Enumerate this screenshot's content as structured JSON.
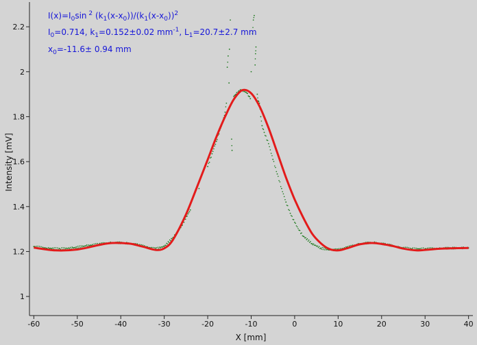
{
  "chart_data": {
    "type": "scatter",
    "xlabel": "X [mm]",
    "ylabel": "Intensity [mV]",
    "xlim": [
      -61,
      41
    ],
    "ylim": [
      0.915,
      2.31
    ],
    "x_ticks": [
      -60,
      -50,
      -40,
      -30,
      -20,
      -10,
      0,
      10,
      20,
      30,
      40
    ],
    "y_ticks": [
      1,
      1.2,
      1.4,
      1.6,
      1.8,
      2,
      2.2
    ],
    "grid": false,
    "colors": {
      "data": "#1f7a1f",
      "fit": "#e31b1b",
      "annotation": "#1515d8",
      "background": "#d4d4d4"
    },
    "annotations": {
      "line1": {
        "p1": "I(x)=I",
        "p2": "0",
        "p3": "sin",
        "p4": " 2",
        "p5": " (k",
        "p6": "1",
        "p7": "(x-x",
        "p8": "0",
        "p9": "))/(k",
        "p10": "1",
        "p11": "(x-x",
        "p12": "0",
        "p13": "))",
        "p14": "2"
      },
      "line2": {
        "p1": "I",
        "p2": "0",
        "p3": "=0.714,  k",
        "p4": "1",
        "p5": "=0.152±0.02 mm",
        "p6": "-1",
        "p7": ",   L",
        "p8": "1",
        "p9": "=20.7±2.7 mm"
      },
      "line3": {
        "p1": "x",
        "p2": "0",
        "p3": "=-11.6±  0.94 mm"
      }
    },
    "series": [
      {
        "kind": "fit",
        "x": [
          -60,
          -55,
          -50,
          -45,
          -42,
          -38,
          -35,
          -32,
          -30,
          -28,
          -25,
          -22,
          -20,
          -18,
          -16,
          -14,
          -12,
          -10,
          -8,
          -6,
          -4,
          -2,
          0,
          2,
          4,
          6,
          8,
          10,
          12,
          15,
          18,
          22,
          25,
          28,
          30,
          33,
          36,
          40
        ],
        "y": [
          1.217,
          1.205,
          1.209,
          1.229,
          1.238,
          1.235,
          1.222,
          1.207,
          1.214,
          1.252,
          1.365,
          1.51,
          1.609,
          1.71,
          1.8,
          1.877,
          1.918,
          1.904,
          1.843,
          1.75,
          1.64,
          1.53,
          1.432,
          1.35,
          1.28,
          1.237,
          1.211,
          1.205,
          1.214,
          1.232,
          1.238,
          1.227,
          1.213,
          1.205,
          1.207,
          1.212,
          1.214,
          1.216
        ]
      },
      {
        "kind": "data",
        "x": [
          -60,
          -57,
          -54,
          -51,
          -48,
          -45,
          -42,
          -39,
          -36,
          -34,
          -32,
          -30,
          -28,
          -26,
          -24,
          -22,
          -20,
          -19,
          -18,
          -17,
          -16.5,
          -16,
          -15.7,
          -15.5,
          -15.3,
          -15.1,
          -15,
          -14.8,
          -14.6,
          -14.5,
          -14.4,
          -14,
          -13.5,
          -13,
          -12.5,
          -12,
          -11.5,
          -11,
          -10.5,
          -10.2,
          -10,
          -9.7,
          -9.5,
          -9.3,
          -9.1,
          -9,
          -8.9,
          -8.6,
          -8.4,
          -8.1,
          -7.8,
          -7.5,
          -7,
          -6,
          -5,
          -4,
          -3,
          -2,
          -1,
          0,
          1,
          2,
          4,
          6,
          8,
          10,
          12,
          15,
          18,
          21,
          24,
          27,
          30,
          33,
          36,
          39,
          40
        ],
        "y": [
          1.222,
          1.215,
          1.212,
          1.216,
          1.225,
          1.233,
          1.24,
          1.238,
          1.23,
          1.22,
          1.212,
          1.223,
          1.262,
          1.315,
          1.385,
          1.48,
          1.578,
          1.635,
          1.69,
          1.75,
          1.78,
          1.82,
          1.86,
          2.02,
          2.07,
          1.95,
          2.1,
          2.23,
          1.86,
          1.7,
          1.65,
          1.89,
          1.9,
          1.91,
          1.92,
          1.918,
          1.912,
          1.905,
          1.89,
          1.88,
          2.0,
          2.17,
          2.23,
          2.25,
          2.03,
          2.08,
          2.11,
          1.9,
          1.87,
          1.86,
          1.8,
          1.76,
          1.73,
          1.68,
          1.61,
          1.545,
          1.48,
          1.42,
          1.37,
          1.33,
          1.295,
          1.268,
          1.235,
          1.215,
          1.207,
          1.208,
          1.218,
          1.235,
          1.24,
          1.232,
          1.219,
          1.212,
          1.212,
          1.214,
          1.215,
          1.216,
          1.216
        ]
      }
    ]
  }
}
